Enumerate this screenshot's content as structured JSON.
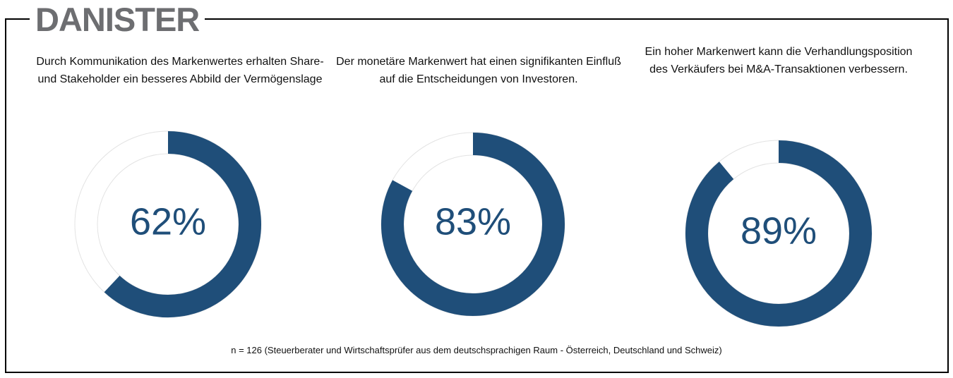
{
  "logo": "DANISTER",
  "footnote": "n = 126 (Steuerberater und Wirtschaftsprüfer aus dem deutschsprachigen Raum - Österreich, Deutschland und Schweiz)",
  "chart_data": [
    {
      "type": "donut",
      "title": "Durch Kommunikation des Markenwertes erhalten Share- und Stakeholder ein besseres Abbild der Vermögenslage",
      "values": [
        62
      ],
      "value_labels": [
        "62%"
      ],
      "color": "#1f4e79"
    },
    {
      "type": "donut",
      "title": "Der monetäre Markenwert hat einen signifikanten Einfluß auf die Entscheidungen von Investoren.",
      "values": [
        83
      ],
      "value_labels": [
        "83%"
      ],
      "color": "#1f4e79"
    },
    {
      "type": "donut",
      "title": "Ein hoher Markenwert kann die Verhandlungsposition des Verkäufers bei M&A-Transaktionen verbessern.",
      "values": [
        89
      ],
      "value_labels": [
        "89%"
      ],
      "color": "#1f4e79"
    }
  ]
}
